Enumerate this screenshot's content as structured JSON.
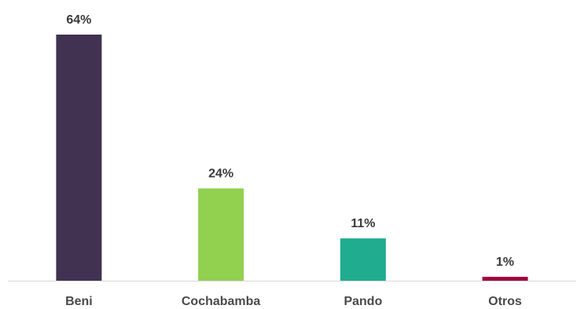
{
  "chart_data": {
    "type": "bar",
    "categories": [
      "Beni",
      "Cochabamba",
      "Pando",
      "Otros"
    ],
    "values": [
      64,
      24,
      11,
      1
    ],
    "data_labels": [
      "64%",
      "24%",
      "11%",
      "1%"
    ],
    "colors": [
      "#413251",
      "#92d050",
      "#20ac8f",
      "#a0003c"
    ],
    "ylim": [
      0,
      64
    ],
    "grid": false,
    "legend": "none",
    "axis_color": "#d9d9d9"
  }
}
